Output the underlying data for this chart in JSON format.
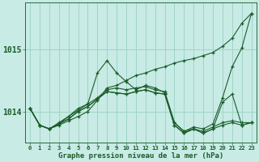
{
  "xlabel": "Graphe pression niveau de la mer (hPa)",
  "background_color": "#c8ebe5",
  "grid_color": "#a0d4c8",
  "line_color": "#1a5c2a",
  "hours": [
    0,
    1,
    2,
    3,
    4,
    5,
    6,
    7,
    8,
    9,
    10,
    11,
    12,
    13,
    14,
    15,
    16,
    17,
    18,
    19,
    20,
    21,
    22,
    23
  ],
  "series": [
    [
      1014.05,
      1013.78,
      1013.72,
      1013.78,
      1013.85,
      1013.92,
      1014.0,
      1014.18,
      1014.38,
      1014.42,
      1014.5,
      1014.58,
      1014.62,
      1014.68,
      1014.72,
      1014.78,
      1014.82,
      1014.85,
      1014.9,
      1014.95,
      1015.05,
      1015.18,
      1015.42,
      1015.58
    ],
    [
      1014.05,
      1013.78,
      1013.72,
      1013.8,
      1013.92,
      1014.05,
      1014.12,
      1014.62,
      1014.82,
      1014.62,
      1014.48,
      1014.35,
      1014.42,
      1014.38,
      1014.3,
      1013.82,
      1013.68,
      1013.75,
      1013.72,
      1013.8,
      1014.22,
      1014.72,
      1015.02,
      1015.58
    ],
    [
      1014.05,
      1013.78,
      1013.72,
      1013.82,
      1013.92,
      1014.02,
      1014.12,
      1014.22,
      1014.35,
      1014.38,
      1014.35,
      1014.38,
      1014.4,
      1014.35,
      1014.32,
      1013.82,
      1013.68,
      1013.72,
      1013.68,
      1013.75,
      1013.82,
      1013.85,
      1013.82,
      1013.82
    ],
    [
      1014.05,
      1013.78,
      1013.72,
      1013.8,
      1013.88,
      1014.0,
      1014.08,
      1014.2,
      1014.32,
      1014.3,
      1014.28,
      1014.32,
      1014.35,
      1014.3,
      1014.28,
      1013.78,
      1013.65,
      1013.72,
      1013.65,
      1013.72,
      1014.15,
      1014.28,
      1013.78,
      1013.82
    ],
    [
      1014.05,
      1013.78,
      1013.72,
      1013.8,
      1013.88,
      1014.0,
      1014.08,
      1014.2,
      1014.32,
      1014.3,
      1014.28,
      1014.32,
      1014.35,
      1014.3,
      1014.28,
      1013.78,
      1013.65,
      1013.72,
      1013.65,
      1013.72,
      1013.78,
      1013.82,
      1013.78,
      1013.82
    ]
  ],
  "yticks": [
    1014,
    1015
  ],
  "ylim": [
    1013.5,
    1015.75
  ],
  "xlim": [
    -0.5,
    23.5
  ],
  "xlabel_fontsize": 6.5,
  "ytick_fontsize": 7,
  "xtick_fontsize": 5.2
}
